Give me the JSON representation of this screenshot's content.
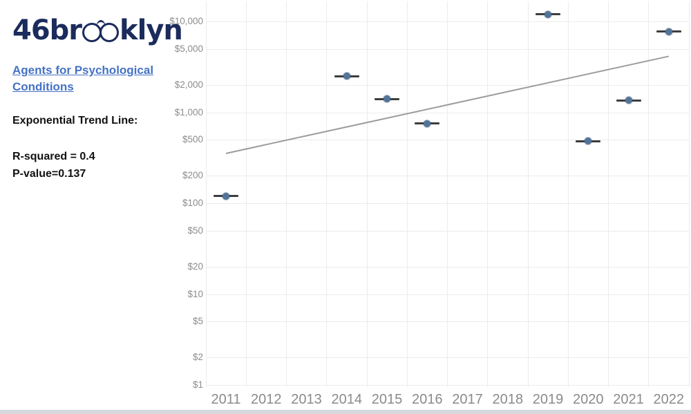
{
  "branding": {
    "logo_prefix": "46br",
    "logo_suffix": "klyn",
    "logo_color": "#1b2b5c"
  },
  "sidebar": {
    "link_text": "Agents for Psychological Conditions",
    "trend_label": "Exponential Trend Line:",
    "r_squared": "R-squared = 0.4",
    "p_value": "P-value=0.137",
    "link_color": "#4472c4"
  },
  "chart_data": {
    "type": "scatter",
    "title": "",
    "xlabel": "",
    "ylabel": "",
    "y_scale": "log",
    "xlim": [
      2010.5,
      2022.5
    ],
    "ylim": [
      1,
      15000
    ],
    "grid": true,
    "legend": "none",
    "marker_style": "dot-with-horizontal-whisker",
    "x": [
      2011,
      2014,
      2015,
      2016,
      2019,
      2020,
      2021,
      2022
    ],
    "y": [
      120,
      2500,
      1400,
      750,
      12000,
      480,
      1350,
      7700
    ],
    "x_ticks": [
      "2011",
      "2012",
      "2013",
      "2014",
      "2015",
      "2016",
      "2017",
      "2018",
      "2019",
      "2020",
      "2021",
      "2022"
    ],
    "y_ticks": [
      {
        "label": "$10,000",
        "value": 10000
      },
      {
        "label": "$5,000",
        "value": 5000
      },
      {
        "label": "$2,000",
        "value": 2000
      },
      {
        "label": "$1,000",
        "value": 1000
      },
      {
        "label": "$500",
        "value": 500
      },
      {
        "label": "$200",
        "value": 200
      },
      {
        "label": "$100",
        "value": 100
      },
      {
        "label": "$50",
        "value": 50
      },
      {
        "label": "$20",
        "value": 20
      },
      {
        "label": "$10",
        "value": 10
      },
      {
        "label": "$5",
        "value": 5
      },
      {
        "label": "$2",
        "value": 2
      },
      {
        "label": "$1",
        "value": 1
      }
    ],
    "trend_line": {
      "model": "exponential",
      "start": {
        "x": 2011,
        "value": 350
      },
      "end": {
        "x": 2022,
        "value": 4100
      },
      "r_squared": 0.4,
      "p_value": 0.137
    },
    "colors": {
      "marker": "#527499",
      "whisker": "#3d3d3d",
      "trend": "#9c9c9c",
      "grid": "#ececec",
      "axis_text": "#8c8c8c"
    }
  }
}
